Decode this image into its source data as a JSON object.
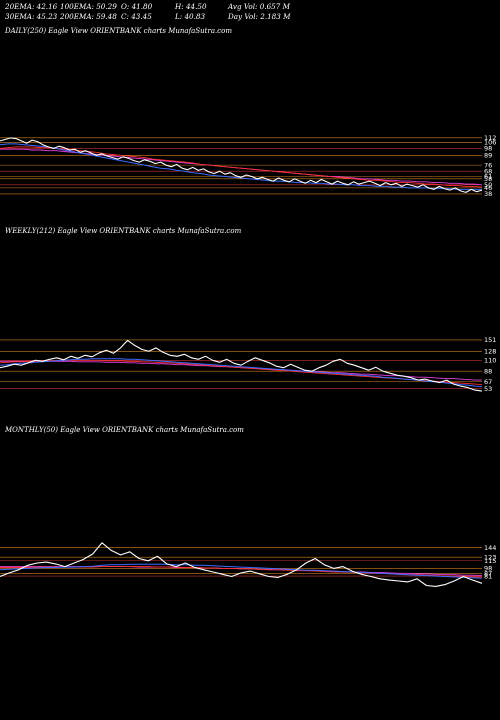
{
  "header": {
    "ema20": "20EMA: 42.16",
    "ema100": "100EMA: 50.29",
    "open": "O: 41.80",
    "high": "H: 44.50",
    "avgvol": "Avg Vol: 0.657 M",
    "ema30": "30EMA: 45.23",
    "ema200": "200EMA: 59.48",
    "close": "C: 43.45",
    "low": "L: 40.83",
    "dayvol": "Day Vol: 2.183 M"
  },
  "colors": {
    "background": "#000000",
    "price": "#ffffff",
    "ema_blue": "#3a6bff",
    "ema_red": "#ff3030",
    "ema_magenta": "#e040e0",
    "level_orange": "#d08020",
    "level_red": "#c83030"
  },
  "chart_data": [
    {
      "type": "line",
      "title": "DAILY(250) Eagle  View  ORIENTBANK charts MunafaSutra.com",
      "yticks": [
        "112",
        "106",
        "98",
        "89",
        "76",
        "68",
        "61",
        "58",
        "50",
        "46",
        "38"
      ],
      "ylim": [
        30,
        125
      ],
      "series": [
        {
          "key": "price",
          "values": [
            108,
            110,
            112,
            111,
            108,
            105,
            109,
            107,
            103,
            100,
            98,
            101,
            99,
            96,
            97,
            93,
            95,
            92,
            89,
            91,
            88,
            86,
            84,
            87,
            85,
            82,
            80,
            83,
            81,
            78,
            80,
            76,
            74,
            77,
            72,
            70,
            73,
            69,
            71,
            67,
            65,
            68,
            64,
            66,
            62,
            60,
            63,
            61,
            58,
            60,
            57,
            55,
            59,
            56,
            54,
            58,
            55,
            52,
            56,
            53,
            57,
            54,
            51,
            55,
            52,
            50,
            54,
            51,
            53,
            55,
            52,
            49,
            53,
            50,
            52,
            48,
            51,
            49,
            47,
            50,
            46,
            44,
            48,
            45,
            43,
            46,
            42,
            40,
            44,
            41,
            43
          ]
        },
        {
          "key": "ema_blue",
          "values": [
            103,
            104,
            104,
            103,
            102,
            101,
            100,
            98,
            96,
            94,
            92,
            90,
            88,
            86,
            84,
            82,
            80,
            78,
            76,
            74,
            72,
            71,
            69,
            68,
            66,
            65,
            63,
            62,
            61,
            60,
            59,
            58,
            57,
            56,
            55,
            55,
            54,
            53,
            53,
            52,
            52,
            51,
            51,
            50,
            50,
            49,
            49,
            48,
            48,
            47,
            47,
            46,
            46,
            46,
            45,
            45,
            45,
            44,
            44,
            44,
            44
          ]
        },
        {
          "key": "ema_red",
          "values": [
            98,
            99,
            100,
            100,
            100,
            99,
            99,
            98,
            97,
            96,
            95,
            94,
            93,
            91,
            90,
            89,
            88,
            87,
            86,
            84,
            83,
            82,
            81,
            80,
            79,
            77,
            76,
            75,
            74,
            73,
            72,
            71,
            70,
            69,
            68,
            67,
            66,
            65,
            64,
            63,
            62,
            61,
            60,
            59,
            58,
            57,
            56,
            56,
            55,
            54,
            53,
            53,
            52,
            51,
            51,
            50,
            49,
            49,
            48,
            48,
            47
          ]
        },
        {
          "key": "ema_magenta",
          "values": [
            97,
            97,
            97,
            97,
            96,
            96,
            95,
            95,
            94,
            93,
            92,
            91,
            90,
            89,
            88,
            87,
            86,
            85,
            84,
            83,
            82,
            81,
            80,
            79,
            78,
            77,
            76,
            75,
            74,
            73,
            72,
            71,
            70,
            69,
            68,
            67,
            66,
            65,
            64,
            63,
            62,
            61,
            61,
            60,
            59,
            58,
            58,
            57,
            56,
            56,
            55,
            55,
            54,
            54,
            53,
            53,
            52,
            52,
            51,
            51,
            50
          ]
        }
      ]
    },
    {
      "type": "line",
      "title": "WEEKLY(212) Eagle  View  ORIENTBANK charts MunafaSutra.com",
      "yticks": [
        "151",
        "128",
        "110",
        "88",
        "67",
        "53"
      ],
      "ylim": [
        30,
        175
      ],
      "series": [
        {
          "key": "price",
          "values": [
            95,
            98,
            102,
            100,
            105,
            110,
            108,
            112,
            115,
            111,
            118,
            114,
            120,
            117,
            125,
            130,
            124,
            135,
            150,
            140,
            132,
            128,
            135,
            126,
            120,
            118,
            122,
            115,
            112,
            118,
            110,
            106,
            112,
            104,
            100,
            108,
            115,
            110,
            105,
            98,
            95,
            102,
            96,
            90,
            88,
            95,
            100,
            108,
            112,
            104,
            100,
            95,
            90,
            96,
            88,
            84,
            80,
            78,
            75,
            70,
            72,
            68,
            65,
            70,
            62,
            58,
            55,
            50,
            48
          ]
        },
        {
          "key": "ema_blue",
          "values": [
            100,
            101,
            103,
            104,
            105,
            106,
            107,
            108,
            109,
            110,
            111,
            112,
            112,
            113,
            113,
            113,
            113,
            113,
            112,
            112,
            111,
            110,
            109,
            108,
            107,
            106,
            105,
            104,
            103,
            102,
            101,
            100,
            99,
            98,
            97,
            96,
            95,
            94,
            93,
            92,
            91,
            90,
            89,
            88,
            87,
            86,
            85,
            84,
            83,
            82,
            81,
            80,
            79,
            78,
            76,
            75,
            74,
            72,
            71,
            70,
            68,
            67,
            66,
            64,
            63,
            61,
            60,
            58,
            57
          ]
        },
        {
          "key": "ema_red",
          "values": [
            105,
            106,
            107,
            107,
            108,
            108,
            109,
            109,
            110,
            110,
            110,
            110,
            110,
            110,
            110,
            109,
            109,
            109,
            108,
            108,
            107,
            107,
            106,
            105,
            105,
            104,
            103,
            102,
            101,
            100,
            99,
            98,
            97,
            96,
            95,
            94,
            93,
            92,
            91,
            90,
            89,
            88,
            87,
            86,
            85,
            84,
            83,
            82,
            81,
            80,
            79,
            78,
            77,
            76,
            75,
            74,
            73,
            72,
            71,
            70,
            69,
            68,
            67,
            66,
            65,
            64,
            63,
            62,
            61
          ]
        },
        {
          "key": "ema_magenta",
          "values": [
            108,
            108,
            108,
            108,
            108,
            108,
            108,
            108,
            108,
            108,
            108,
            107,
            107,
            107,
            107,
            106,
            106,
            106,
            105,
            105,
            104,
            104,
            103,
            103,
            102,
            101,
            101,
            100,
            99,
            99,
            98,
            97,
            97,
            96,
            95,
            94,
            94,
            93,
            92,
            91,
            91,
            90,
            89,
            88,
            88,
            87,
            86,
            85,
            85,
            84,
            83,
            82,
            82,
            81,
            80,
            79,
            79,
            78,
            77,
            76,
            76,
            75,
            74,
            73,
            73,
            72,
            71,
            70,
            70
          ]
        }
      ]
    },
    {
      "type": "line",
      "title": "MONTHLY(50) Eagle  View  ORIENTBANK charts MunafaSutra.com",
      "yticks": [
        "144",
        "123",
        "115",
        "98",
        "87",
        "81"
      ],
      "ylim": [
        30,
        190
      ],
      "series": [
        {
          "key": "price",
          "values": [
            80,
            88,
            95,
            105,
            110,
            112,
            108,
            102,
            110,
            118,
            130,
            155,
            138,
            128,
            135,
            120,
            115,
            125,
            108,
            102,
            110,
            100,
            95,
            90,
            85,
            80,
            88,
            92,
            86,
            80,
            78,
            85,
            95,
            110,
            120,
            106,
            98,
            102,
            92,
            85,
            80,
            75,
            72,
            70,
            68,
            75,
            60,
            58,
            62,
            70,
            80,
            72,
            65
          ]
        },
        {
          "key": "ema_blue",
          "values": [
            95,
            96,
            97,
            98,
            99,
            100,
            100,
            101,
            101,
            102,
            103,
            105,
            106,
            106,
            107,
            107,
            107,
            107,
            107,
            106,
            106,
            105,
            105,
            104,
            103,
            102,
            101,
            100,
            99,
            98,
            97,
            96,
            95,
            94,
            94,
            93,
            92,
            91,
            90,
            89,
            88,
            87,
            86,
            85,
            84,
            83,
            82,
            81,
            80,
            79,
            78,
            77,
            76
          ]
        },
        {
          "key": "ema_red",
          "values": [
            100,
            100,
            100,
            100,
            101,
            101,
            101,
            101,
            101,
            101,
            101,
            102,
            102,
            102,
            102,
            102,
            102,
            101,
            101,
            101,
            100,
            100,
            99,
            99,
            98,
            98,
            97,
            97,
            96,
            95,
            95,
            94,
            93,
            93,
            92,
            91,
            90,
            90,
            89,
            88,
            87,
            87,
            86,
            85,
            84,
            84,
            83,
            82,
            81,
            81,
            80,
            79,
            79
          ]
        },
        {
          "key": "ema_magenta",
          "values": [
            102,
            102,
            102,
            102,
            102,
            102,
            102,
            102,
            102,
            102,
            102,
            102,
            102,
            102,
            102,
            101,
            101,
            101,
            101,
            100,
            100,
            100,
            99,
            99,
            98,
            98,
            97,
            97,
            96,
            96,
            95,
            95,
            94,
            93,
            93,
            92,
            92,
            91,
            90,
            90,
            89,
            89,
            88,
            87,
            87,
            86,
            86,
            85,
            84,
            84,
            83,
            83,
            82
          ]
        }
      ]
    }
  ]
}
